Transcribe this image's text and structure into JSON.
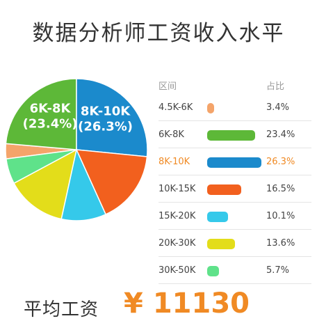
{
  "title": "数据分析师工资收入水平",
  "chart_data": {
    "type": "pie",
    "title": "数据分析师工资收入水平",
    "table_headers": {
      "range": "区间",
      "share": "占比"
    },
    "slices": [
      {
        "label": "4.5K-6K",
        "value": 3.4,
        "pct_label": "3.4%",
        "color": "#f4a46a"
      },
      {
        "label": "6K-8K",
        "value": 23.4,
        "pct_label": "23.4%",
        "color": "#5db838"
      },
      {
        "label": "8K-10K",
        "value": 26.3,
        "pct_label": "26.3%",
        "color": "#1b8acc"
      },
      {
        "label": "10K-15K",
        "value": 16.5,
        "pct_label": "16.5%",
        "color": "#f2601e"
      },
      {
        "label": "15K-20K",
        "value": 10.1,
        "pct_label": "10.1%",
        "color": "#35c9ea"
      },
      {
        "label": "20K-30K",
        "value": 13.6,
        "pct_label": "13.6%",
        "color": "#e3dd1a"
      },
      {
        "label": "30K-50K",
        "value": 5.7,
        "pct_label": "5.7%",
        "color": "#5fe28a"
      }
    ],
    "pie_labels": [
      {
        "slice": "6K-8K",
        "line1": "6K-8K",
        "line2": "(23.4%)"
      },
      {
        "slice": "8K-10K",
        "line1": "8K-10K",
        "line2": "(26.3%)"
      }
    ],
    "highlight_row": "8K-10K",
    "highlight_color": "#f08a24"
  },
  "footer": {
    "label": "平均工资",
    "currency": "¥",
    "value": "11130"
  }
}
